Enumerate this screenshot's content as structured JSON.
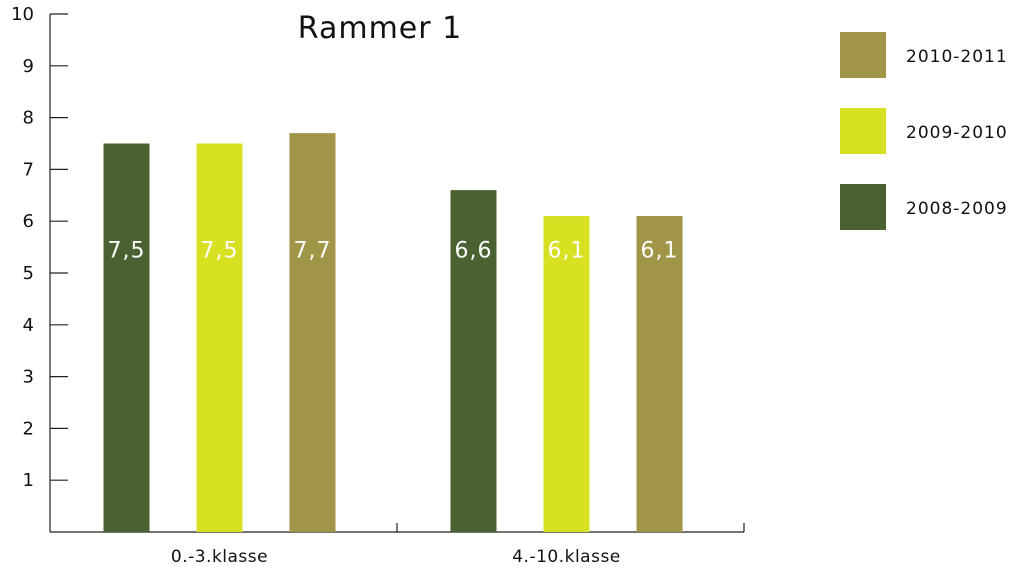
{
  "chart_data": {
    "type": "bar",
    "title": "Rammer 1",
    "categories": [
      "0.-3.klasse",
      "4.-10.klasse"
    ],
    "series": [
      {
        "name": "2008-2009",
        "color": "#4a6131",
        "values": [
          7.5,
          6.6
        ],
        "labels": [
          "7,5",
          "6,6"
        ]
      },
      {
        "name": "2009-2010",
        "color": "#d8e022",
        "values": [
          7.5,
          6.1
        ],
        "labels": [
          "7,5",
          "6,1"
        ]
      },
      {
        "name": "2010-2011",
        "color": "#a19548",
        "values": [
          7.7,
          6.1
        ],
        "labels": [
          "7,7",
          "6,1"
        ]
      }
    ],
    "ylim": [
      0,
      10
    ],
    "yticks": [
      "1",
      "2",
      "3",
      "4",
      "5",
      "6",
      "7",
      "8",
      "9",
      "10"
    ],
    "xlabel": "",
    "ylabel": "",
    "grid": false,
    "legend_position": "right",
    "legend_order": [
      "2010-2011",
      "2009-2010",
      "2008-2009"
    ]
  }
}
